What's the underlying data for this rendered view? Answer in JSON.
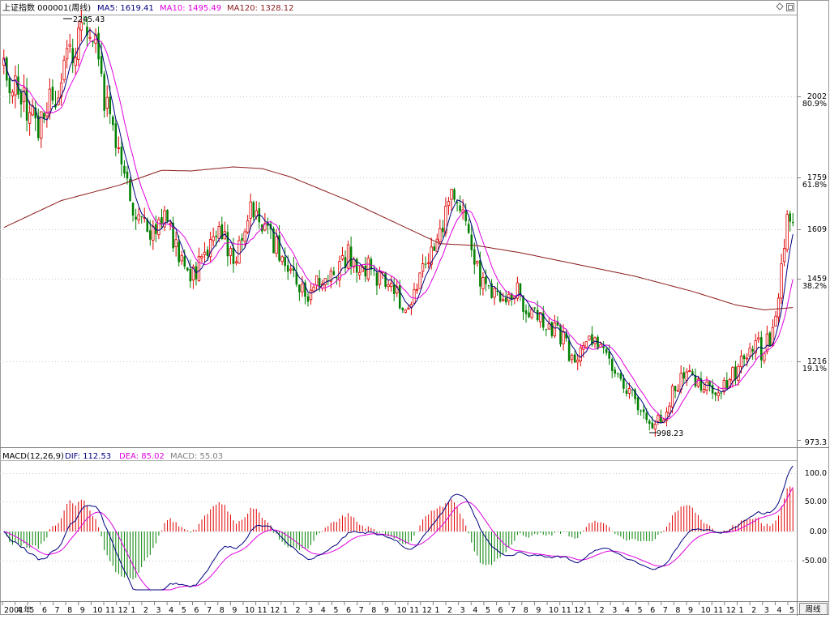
{
  "header": {
    "title": "上证指数 000001(周线)",
    "ma5_label": "MA5: 1619.41",
    "ma10_label": "MA10: 1495.49",
    "ma120_label": "MA120: 1328.12"
  },
  "annotations": {
    "high": "2245.43",
    "low": "998.23"
  },
  "price_axis": {
    "ticks": [
      "2002",
      "1759",
      "1609",
      "1459",
      "1216",
      "973.3"
    ],
    "fib": [
      "80.9%",
      "61.8%",
      "38.2%",
      "19.1%"
    ]
  },
  "macd_header": {
    "label": "MACD(12,26,9)",
    "dif": "DIF: 112.53",
    "dea": "DEA: 85.02",
    "macd": "MACD: 55.03"
  },
  "macd_axis": {
    "ticks": [
      "100.0",
      "50.00",
      "0.00",
      "-50.00"
    ]
  },
  "time_axis": {
    "labels": [
      "2001年",
      "4",
      "5",
      "6",
      "7",
      "8",
      "9",
      "10",
      "11",
      "12",
      "1",
      "2",
      "3",
      "4",
      "5",
      "6",
      "7",
      "8",
      "9",
      "10",
      "11",
      "12",
      "1",
      "2",
      "3",
      "4",
      "5",
      "6",
      "7",
      "8",
      "9",
      "10",
      "11",
      "12",
      "1",
      "2",
      "3",
      "4",
      "5",
      "6",
      "7",
      "8",
      "9",
      "10",
      "11",
      "12",
      "1",
      "2",
      "3",
      "4",
      "5",
      "6",
      "7",
      "8",
      "9",
      "10",
      "11",
      "12",
      "1",
      "2",
      "3",
      "4",
      "5"
    ],
    "period_tab": "周线"
  },
  "window_icons": [
    "diamond-icon",
    "restore-icon"
  ],
  "colors": {
    "up": "#e00000",
    "down": "#008000",
    "ma5": "#000080",
    "ma10": "#e000e0",
    "ma120": "#8b1a1a",
    "dif": "#000080",
    "dea": "#e000e0"
  },
  "chart_data": [
    {
      "type": "candlestick",
      "title": "上证指数 000001(周线)",
      "period": "weekly",
      "x_range": [
        "2001-03",
        "2005-05"
      ],
      "ylim": [
        973.3,
        2245.43
      ],
      "grid": true,
      "anchors": {
        "high": 2245.43,
        "low": 998.23
      },
      "close_path": [
        [
          0,
          2080
        ],
        [
          6,
          2010
        ],
        [
          12,
          1920
        ],
        [
          18,
          2020
        ],
        [
          24,
          2150
        ],
        [
          28,
          2200
        ],
        [
          32,
          2150
        ],
        [
          34,
          2040
        ],
        [
          40,
          1820
        ],
        [
          44,
          1700
        ],
        [
          48,
          1620
        ],
        [
          52,
          1600
        ],
        [
          56,
          1650
        ],
        [
          62,
          1520
        ],
        [
          66,
          1475
        ],
        [
          70,
          1560
        ],
        [
          76,
          1600
        ],
        [
          80,
          1520
        ],
        [
          86,
          1660
        ],
        [
          90,
          1620
        ],
        [
          96,
          1550
        ],
        [
          102,
          1450
        ],
        [
          106,
          1400
        ],
        [
          110,
          1470
        ],
        [
          116,
          1500
        ],
        [
          120,
          1540
        ],
        [
          124,
          1510
        ],
        [
          128,
          1500
        ],
        [
          132,
          1460
        ],
        [
          136,
          1420
        ],
        [
          140,
          1390
        ],
        [
          144,
          1450
        ],
        [
          150,
          1560
        ],
        [
          154,
          1660
        ],
        [
          156,
          1750
        ],
        [
          158,
          1730
        ],
        [
          162,
          1600
        ],
        [
          166,
          1470
        ],
        [
          170,
          1440
        ],
        [
          174,
          1400
        ],
        [
          178,
          1440
        ],
        [
          184,
          1360
        ],
        [
          188,
          1350
        ],
        [
          194,
          1300
        ],
        [
          198,
          1230
        ],
        [
          202,
          1270
        ],
        [
          206,
          1280
        ],
        [
          210,
          1240
        ],
        [
          214,
          1200
        ],
        [
          218,
          1130
        ],
        [
          222,
          1060
        ],
        [
          226,
          1020
        ],
        [
          230,
          1060
        ],
        [
          234,
          1150
        ],
        [
          238,
          1190
        ],
        [
          242,
          1160
        ],
        [
          246,
          1130
        ],
        [
          250,
          1140
        ],
        [
          254,
          1180
        ],
        [
          258,
          1240
        ],
        [
          262,
          1280
        ],
        [
          264,
          1250
        ],
        [
          268,
          1310
        ],
        [
          271,
          1500
        ],
        [
          273,
          1640
        ],
        [
          275,
          1620
        ]
      ],
      "ma120_path": [
        [
          0,
          1620
        ],
        [
          20,
          1700
        ],
        [
          40,
          1745
        ],
        [
          55,
          1790
        ],
        [
          65,
          1788
        ],
        [
          80,
          1800
        ],
        [
          90,
          1795
        ],
        [
          100,
          1770
        ],
        [
          120,
          1700
        ],
        [
          140,
          1620
        ],
        [
          152,
          1572
        ],
        [
          165,
          1566
        ],
        [
          180,
          1545
        ],
        [
          200,
          1510
        ],
        [
          220,
          1475
        ],
        [
          240,
          1430
        ],
        [
          255,
          1390
        ],
        [
          265,
          1375
        ],
        [
          275,
          1382
        ]
      ],
      "ma5_last": 1619.41,
      "ma10_last": 1495.49,
      "ma120_last": 1328.12
    },
    {
      "type": "macd",
      "params": [
        12,
        26,
        9
      ],
      "ylim": [
        -100,
        120
      ],
      "dif_last": 112.53,
      "dea_last": 85.02,
      "macd_last": 55.03
    }
  ]
}
